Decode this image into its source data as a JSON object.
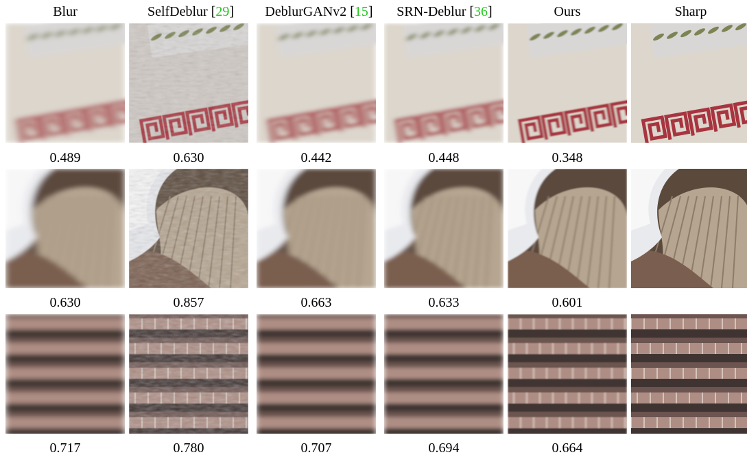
{
  "columns": [
    {
      "label": "Blur",
      "cite": ""
    },
    {
      "label": "SelfDeblur [",
      "cite": "29",
      "close": "]"
    },
    {
      "label": "DeblurGANv2 [",
      "cite": "15",
      "close": "]"
    },
    {
      "label": "SRN-Deblur [",
      "cite": "36",
      "close": "]"
    },
    {
      "label": "Ours",
      "cite": ""
    },
    {
      "label": "Sharp",
      "cite": ""
    }
  ],
  "rows": [
    {
      "scene": "wall-with-red-meander-pattern",
      "scores": [
        "0.489",
        "0.630",
        "0.442",
        "0.448",
        "0.348",
        ""
      ]
    },
    {
      "scene": "seashell-and-feathers",
      "scores": [
        "0.630",
        "0.857",
        "0.663",
        "0.633",
        "0.601",
        ""
      ]
    },
    {
      "scene": "roof-tiles",
      "scores": [
        "0.717",
        "0.780",
        "0.707",
        "0.694",
        "0.664",
        ""
      ]
    }
  ],
  "colors": {
    "citation": "#22c81e",
    "meander_red": "#a8343f",
    "wall": "#dcd6cc"
  }
}
